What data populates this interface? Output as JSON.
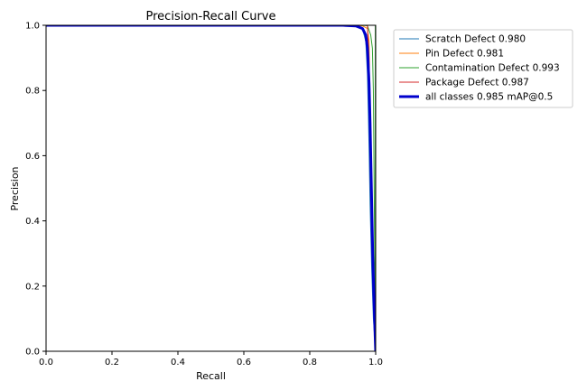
{
  "chart_data": {
    "type": "line",
    "title": "Precision-Recall Curve",
    "xlabel": "Recall",
    "ylabel": "Precision",
    "xlim": [
      0.0,
      1.0
    ],
    "ylim": [
      0.0,
      1.0
    ],
    "xticks": [
      "0.0",
      "0.2",
      "0.4",
      "0.6",
      "0.8",
      "1.0"
    ],
    "yticks": [
      "0.0",
      "0.2",
      "0.4",
      "0.6",
      "0.8",
      "1.0"
    ],
    "grid": false,
    "legend_position": "outside-top-right",
    "series": [
      {
        "name": "Scratch Defect 0.980",
        "color": "#1f77b4",
        "line_width": 1,
        "points": [
          [
            0,
            1.0
          ],
          [
            0.92,
            1.0
          ],
          [
            0.95,
            0.997
          ],
          [
            0.96,
            0.99
          ],
          [
            0.97,
            0.95
          ],
          [
            0.975,
            0.85
          ],
          [
            0.978,
            0.72
          ],
          [
            0.98,
            0.62
          ],
          [
            0.983,
            0.45
          ],
          [
            0.988,
            0.25
          ],
          [
            0.993,
            0.1
          ],
          [
            1.0,
            0.0
          ]
        ]
      },
      {
        "name": "Pin Defect 0.981",
        "color": "#ff7f0e",
        "line_width": 1,
        "points": [
          [
            0,
            1.0
          ],
          [
            0.93,
            1.0
          ],
          [
            0.96,
            0.998
          ],
          [
            0.975,
            0.99
          ],
          [
            0.98,
            0.95
          ],
          [
            0.982,
            0.7
          ],
          [
            0.985,
            0.5
          ],
          [
            0.99,
            0.3
          ],
          [
            0.995,
            0.12
          ],
          [
            1.0,
            0.0
          ]
        ]
      },
      {
        "name": "Contamination Defect 0.993",
        "color": "#2ca02c",
        "line_width": 1,
        "points": [
          [
            0,
            1.0
          ],
          [
            0.95,
            1.0
          ],
          [
            0.975,
            0.999
          ],
          [
            0.985,
            0.97
          ],
          [
            0.99,
            0.93
          ],
          [
            0.993,
            0.8
          ],
          [
            0.995,
            0.55
          ],
          [
            0.997,
            0.3
          ],
          [
            0.999,
            0.1
          ],
          [
            1.0,
            0.0
          ]
        ]
      },
      {
        "name": "Package Defect 0.987",
        "color": "#d62728",
        "line_width": 1,
        "points": [
          [
            0,
            1.0
          ],
          [
            0.97,
            1.0
          ],
          [
            0.975,
            0.999
          ],
          [
            0.977,
            0.95
          ],
          [
            0.98,
            0.9
          ],
          [
            0.984,
            0.7
          ],
          [
            0.988,
            0.45
          ],
          [
            0.992,
            0.25
          ],
          [
            0.996,
            0.1
          ],
          [
            1.0,
            0.0
          ]
        ]
      },
      {
        "name": "all classes 0.985 mAP@0.5",
        "color": "#0000cd",
        "line_width": 3,
        "points": [
          [
            0,
            1.0
          ],
          [
            0.9,
            1.0
          ],
          [
            0.94,
            0.998
          ],
          [
            0.96,
            0.99
          ],
          [
            0.97,
            0.97
          ],
          [
            0.975,
            0.93
          ],
          [
            0.98,
            0.82
          ],
          [
            0.983,
            0.7
          ],
          [
            0.987,
            0.5
          ],
          [
            0.991,
            0.3
          ],
          [
            0.995,
            0.15
          ],
          [
            1.0,
            0.0
          ]
        ]
      }
    ],
    "extra_lines": [
      {
        "color": "#2ca02c",
        "points": [
          [
            0.999,
            1.0
          ],
          [
            0.999,
            0.0
          ]
        ]
      }
    ]
  }
}
